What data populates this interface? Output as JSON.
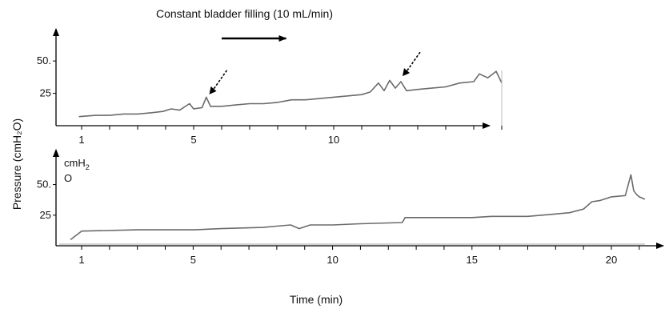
{
  "figure": {
    "title": "Constant bladder filling (10 mL/min)",
    "ylabel": "Pressure (cmH₂O)",
    "xlabel": "Time  (min)"
  },
  "chart_data": [
    {
      "type": "line",
      "panel": "top",
      "xlim": [
        0.7,
        17
      ],
      "ylim": [
        0,
        60
      ],
      "x_ticks": [
        1,
        2,
        3,
        4,
        5,
        6,
        7,
        8,
        9,
        10,
        11,
        12,
        13,
        14,
        15,
        16
      ],
      "x_tick_labels": [
        {
          "value": 1,
          "label": "1"
        },
        {
          "value": 5,
          "label": "5"
        },
        {
          "value": 10,
          "label": "10"
        }
      ],
      "y_tick_labels": [
        {
          "value": 25,
          "label": "25"
        },
        {
          "value": 50,
          "label": "50."
        }
      ],
      "series": [
        {
          "color": "#6b6b6b",
          "x": [
            0.9,
            1.5,
            2.0,
            2.5,
            3.0,
            3.5,
            3.9,
            4.2,
            4.5,
            4.85,
            5.0,
            5.3,
            5.45,
            5.6,
            6.0,
            6.5,
            7.0,
            7.5,
            8.0,
            8.5,
            9.0,
            9.5,
            10.0,
            10.5,
            11.0,
            11.3,
            11.6,
            11.8,
            12.0,
            12.2,
            12.4,
            12.6,
            13.0,
            13.5,
            14.0,
            14.5,
            15.0,
            15.2,
            15.5,
            15.8,
            16.0
          ],
          "y": [
            7,
            8,
            8,
            9,
            9,
            10,
            11,
            13,
            12,
            17,
            13,
            14,
            22,
            15,
            15,
            16,
            17,
            17,
            18,
            20,
            20,
            21,
            22,
            23,
            24,
            26,
            33,
            27,
            35,
            29,
            34,
            27,
            28,
            29,
            30,
            33,
            34,
            40,
            37,
            42,
            33
          ]
        }
      ],
      "annotations": [
        {
          "type": "dashed-arrow",
          "x": 5.5,
          "y": 23
        },
        {
          "type": "dashed-arrow",
          "x": 12.4,
          "y": 37
        },
        {
          "type": "arrow",
          "label": "filling direction",
          "x_from": 6.0,
          "x_to": 8.3,
          "y": 75
        }
      ]
    },
    {
      "type": "line",
      "panel": "bottom",
      "xlim": [
        0.6,
        22
      ],
      "ylim": [
        0,
        70
      ],
      "y_unit": [
        "cmH",
        "2",
        "O"
      ],
      "x_ticks": [
        1,
        2,
        3,
        4,
        5,
        6,
        7,
        8,
        9,
        10,
        11,
        12,
        13,
        14,
        15,
        16,
        17,
        18,
        19,
        20,
        21
      ],
      "x_tick_labels": [
        {
          "value": 1,
          "label": "1"
        },
        {
          "value": 5,
          "label": "5"
        },
        {
          "value": 10,
          "label": "10"
        },
        {
          "value": 15,
          "label": "15"
        },
        {
          "value": 20,
          "label": "20"
        }
      ],
      "y_tick_labels": [
        {
          "value": 25,
          "label": "25"
        },
        {
          "value": 50,
          "label": "50."
        }
      ],
      "series": [
        {
          "color": "#6b6b6b",
          "x": [
            0.6,
            1.0,
            3.0,
            5.0,
            6.0,
            7.5,
            8.0,
            8.5,
            8.8,
            9.2,
            10.0,
            11.0,
            12.5,
            12.6,
            14.0,
            15.0,
            15.7,
            17.0,
            18.0,
            18.5,
            19.0,
            19.3,
            19.6,
            20.0,
            20.5,
            20.7,
            20.8,
            20.9,
            21.0,
            21.2
          ],
          "y": [
            5,
            12,
            13,
            13,
            14,
            15,
            16,
            17,
            14,
            17,
            17,
            18,
            19,
            23,
            23,
            23,
            24,
            24,
            26,
            27,
            30,
            36,
            37,
            40,
            41,
            58,
            45,
            42,
            40,
            38
          ]
        }
      ],
      "baseline": {
        "color": "#c4c4c4",
        "y": 0
      }
    }
  ],
  "colors": {
    "axis": "#000000",
    "trace": "#6b6b6b",
    "baseline": "#c4c4c4"
  }
}
